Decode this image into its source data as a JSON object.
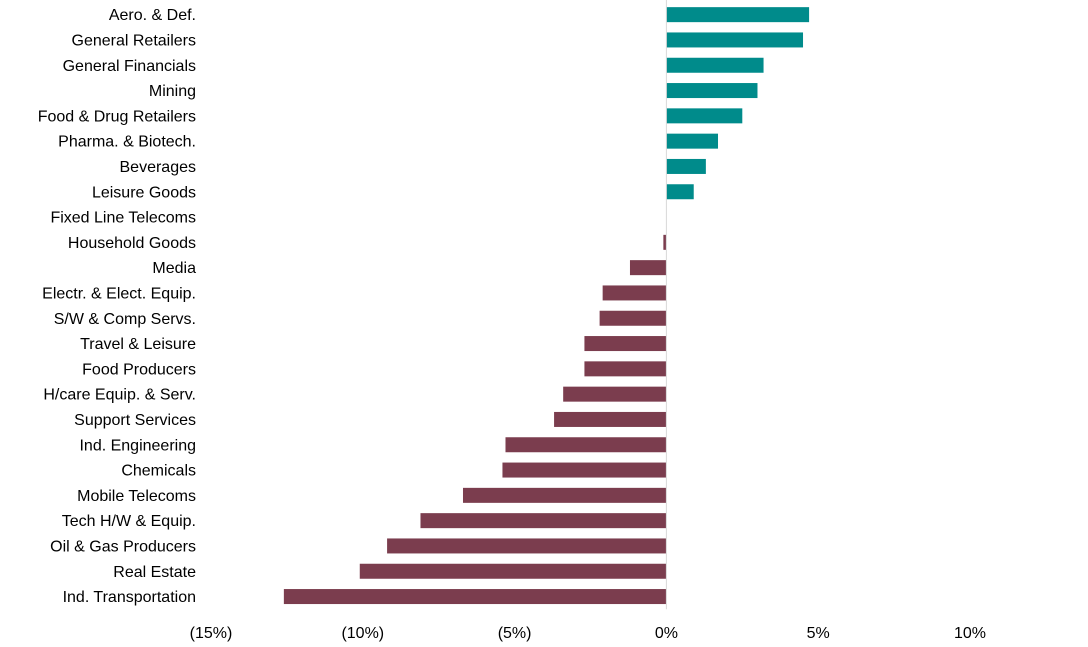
{
  "chart_data": {
    "type": "bar",
    "orientation": "horizontal",
    "categories": [
      "Aero. & Def.",
      "General Retailers",
      "General Financials",
      "Mining",
      "Food & Drug Retailers",
      "Pharma. & Biotech.",
      "Beverages",
      "Leisure Goods",
      "Fixed Line Telecoms",
      "Household Goods",
      "Media",
      "Electr. & Elect. Equip.",
      "S/W & Comp Servs.",
      "Travel & Leisure",
      "Food Producers",
      "H/care Equip. & Serv.",
      "Support Services",
      "Ind. Engineering",
      "Chemicals",
      "Mobile Telecoms",
      "Tech H/W & Equip.",
      "Oil & Gas Producers",
      "Real Estate",
      "Ind. Transportation"
    ],
    "values": [
      4.7,
      4.5,
      3.2,
      3.0,
      2.5,
      1.7,
      1.3,
      0.9,
      0.0,
      -0.1,
      -1.2,
      -2.1,
      -2.2,
      -2.7,
      -2.7,
      -3.4,
      -3.7,
      -5.3,
      -5.4,
      -6.7,
      -8.1,
      -9.2,
      -10.1,
      -12.6
    ],
    "xlim": [
      -15,
      10
    ],
    "x_ticks": [
      -15,
      -10,
      -5,
      0,
      5,
      10
    ],
    "x_tick_labels": [
      "(15%)",
      "(10%)",
      "(5%)",
      "0%",
      "5%",
      "10%"
    ],
    "colors": {
      "positive": "#008B8B",
      "negative": "#7B3D4E",
      "axis": "#D9D9D9"
    },
    "grid": false,
    "legend": "none",
    "title": "",
    "xlabel": "",
    "ylabel": ""
  }
}
